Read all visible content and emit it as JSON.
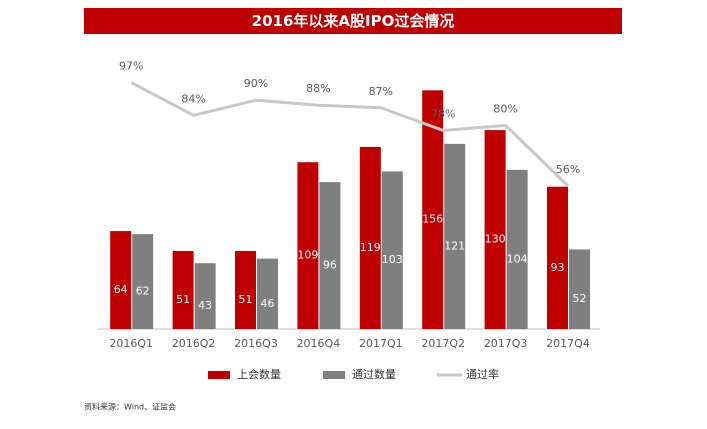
{
  "chart_data": {
    "type": "bar-line",
    "title": "2016年以来A股IPO过会情况",
    "categories": [
      "2016Q1",
      "2016Q2",
      "2016Q3",
      "2016Q4",
      "2017Q1",
      "2017Q2",
      "2017Q3",
      "2017Q4"
    ],
    "series": [
      {
        "name": "上会数量",
        "type": "bar",
        "color": "#c00000",
        "values": [
          64,
          51,
          51,
          109,
          119,
          156,
          130,
          93
        ]
      },
      {
        "name": "通过数量",
        "type": "bar",
        "color": "#7f7f7f",
        "values": [
          62,
          43,
          46,
          96,
          103,
          121,
          104,
          52
        ]
      },
      {
        "name": "通过率",
        "type": "line",
        "axis": "y2",
        "color": "#c8c8c8",
        "values": [
          97,
          84,
          90,
          88,
          87,
          78,
          80,
          56
        ],
        "value_labels": [
          "97%",
          "84%",
          "90%",
          "88%",
          "87%",
          "78%",
          "80%",
          "56%"
        ]
      }
    ],
    "source": "资料来源：Wind、证监会"
  }
}
